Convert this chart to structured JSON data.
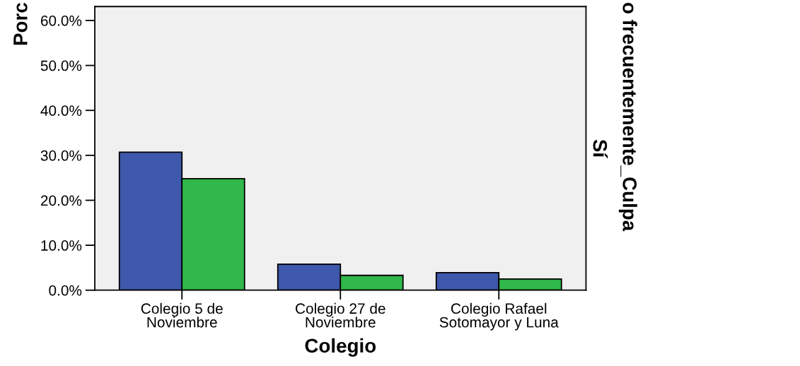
{
  "chart_data": {
    "type": "bar",
    "xlabel": "Colegio",
    "ylabel": "Porc",
    "annotations": [
      "o frecuentemente_Culpa",
      "Sí"
    ],
    "categories": [
      "Colegio 5 de\nNoviembre",
      "Colegio 27 de\nNoviembre",
      "Colegio Rafael\nSotomayor y Luna"
    ],
    "series": [
      {
        "color": "#3e58ab",
        "values": [
          30.7,
          5.8,
          3.9
        ]
      },
      {
        "color": "#30b84a",
        "values": [
          24.8,
          3.3,
          2.5
        ]
      }
    ],
    "ylim": [
      0,
      63.1
    ],
    "yticks": [
      {
        "value": 0,
        "label": "0.0%"
      },
      {
        "value": 10,
        "label": "10.0%"
      },
      {
        "value": 20,
        "label": "20.0%"
      },
      {
        "value": 30,
        "label": "30.0%"
      },
      {
        "value": 40,
        "label": "40.0%"
      },
      {
        "value": 50,
        "label": "50.0%"
      },
      {
        "value": 60,
        "label": "60.0%"
      }
    ]
  }
}
